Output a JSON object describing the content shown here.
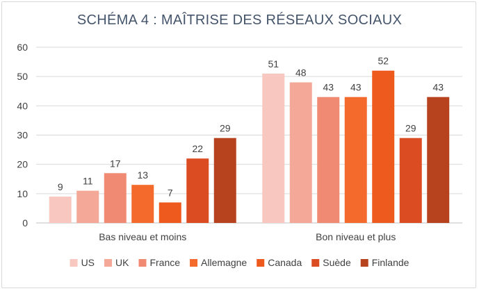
{
  "chart_data": {
    "type": "bar",
    "title": "SCHÉMA 4 : MAÎTRISE DES RÉSEAUX SOCIAUX",
    "xlabel": "",
    "ylabel": "",
    "ylim": [
      0,
      60
    ],
    "yticks": [
      0,
      10,
      20,
      30,
      40,
      50,
      60
    ],
    "grid": true,
    "legend_position": "bottom",
    "categories": [
      "Bas niveau et moins",
      "Bon niveau et plus"
    ],
    "series": [
      {
        "name": "US",
        "values": [
          9,
          51
        ],
        "color": "#f8c8c0"
      },
      {
        "name": "UK",
        "values": [
          11,
          48
        ],
        "color": "#f4a898"
      },
      {
        "name": "France",
        "values": [
          17,
          43
        ],
        "color": "#f08a72"
      },
      {
        "name": "Allemagne",
        "values": [
          13,
          43
        ],
        "color": "#f46a2c"
      },
      {
        "name": "Canada",
        "values": [
          7,
          52
        ],
        "color": "#ee5a1e"
      },
      {
        "name": "Suède",
        "values": [
          22,
          29
        ],
        "color": "#dc4c22"
      },
      {
        "name": "Finlande",
        "values": [
          29,
          43
        ],
        "color": "#b6421e"
      }
    ]
  }
}
